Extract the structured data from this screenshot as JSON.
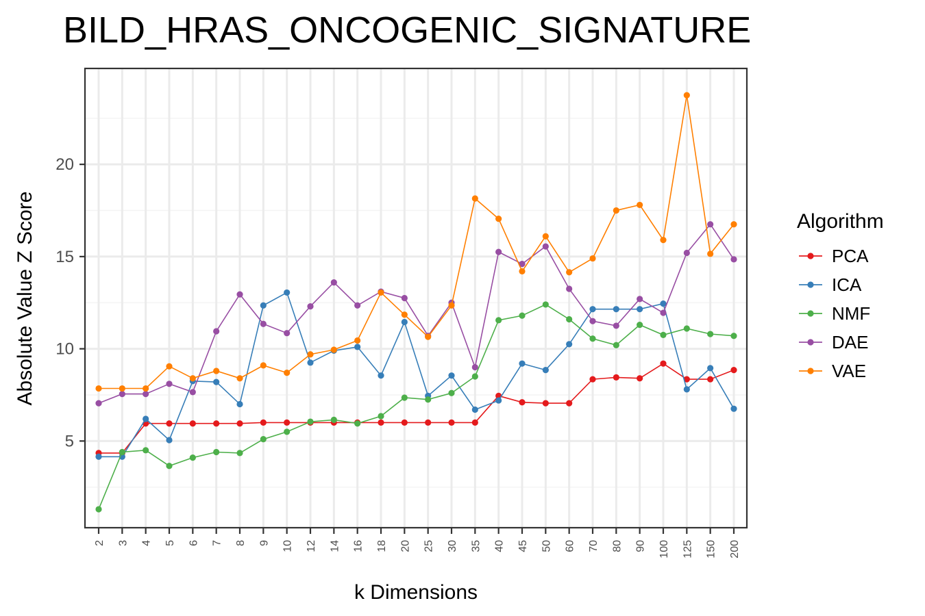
{
  "chart_data": {
    "type": "line",
    "title": "BILD_HRAS_ONCOGENIC_SIGNATURE",
    "xlabel": "k Dimensions",
    "ylabel": "Absolute Value Z Score",
    "categories": [
      "2",
      "3",
      "4",
      "5",
      "6",
      "7",
      "8",
      "9",
      "10",
      "12",
      "14",
      "16",
      "18",
      "20",
      "25",
      "30",
      "35",
      "40",
      "45",
      "50",
      "60",
      "70",
      "80",
      "90",
      "100",
      "125",
      "150",
      "200"
    ],
    "ylim": [
      0.3,
      25.2
    ],
    "yticks": [
      5,
      10,
      15,
      20
    ],
    "ytick_labels": [
      "5",
      "10",
      "15",
      "20"
    ],
    "grid": true,
    "legend": {
      "title": "Algorithm",
      "position": "right"
    },
    "series": [
      {
        "name": "PCA",
        "color": "#e41a1c",
        "values": [
          4.35,
          4.35,
          5.95,
          5.95,
          5.95,
          5.95,
          5.95,
          6.0,
          6.0,
          6.0,
          6.0,
          6.0,
          6.0,
          6.0,
          6.0,
          6.0,
          6.0,
          7.45,
          7.1,
          7.05,
          7.05,
          8.35,
          8.45,
          8.4,
          9.2,
          8.35,
          8.35,
          8.85
        ]
      },
      {
        "name": "ICA",
        "color": "#377eb8",
        "values": [
          4.15,
          4.15,
          6.2,
          5.05,
          8.25,
          8.2,
          7.0,
          12.35,
          13.05,
          9.25,
          9.9,
          10.1,
          8.55,
          11.45,
          7.45,
          8.55,
          6.7,
          7.2,
          9.2,
          8.85,
          10.25,
          12.15,
          12.15,
          12.15,
          12.45,
          7.8,
          8.95,
          6.75
        ]
      },
      {
        "name": "NMF",
        "color": "#4daf4a",
        "values": [
          1.3,
          4.4,
          4.5,
          3.65,
          4.1,
          4.4,
          4.35,
          5.1,
          5.5,
          6.05,
          6.15,
          5.95,
          6.35,
          7.35,
          7.25,
          7.6,
          8.5,
          11.55,
          11.8,
          12.4,
          11.6,
          10.55,
          10.2,
          11.3,
          10.75,
          11.1,
          10.8,
          10.7
        ]
      },
      {
        "name": "DAE",
        "color": "#984ea3",
        "values": [
          7.05,
          7.55,
          7.55,
          8.1,
          7.65,
          10.95,
          12.95,
          11.35,
          10.85,
          12.3,
          13.6,
          12.35,
          13.1,
          12.75,
          10.7,
          12.5,
          9.0,
          15.25,
          14.6,
          15.55,
          13.25,
          11.5,
          11.25,
          12.7,
          11.95,
          15.2,
          16.75,
          14.85
        ]
      },
      {
        "name": "VAE",
        "color": "#ff7f00",
        "values": [
          7.85,
          7.85,
          7.85,
          9.05,
          8.4,
          8.8,
          8.4,
          9.1,
          8.7,
          9.7,
          9.95,
          10.45,
          13.05,
          11.85,
          10.65,
          12.35,
          18.15,
          17.05,
          14.2,
          16.1,
          14.15,
          14.9,
          17.5,
          17.8,
          15.9,
          23.75,
          15.15,
          16.75
        ]
      }
    ]
  }
}
